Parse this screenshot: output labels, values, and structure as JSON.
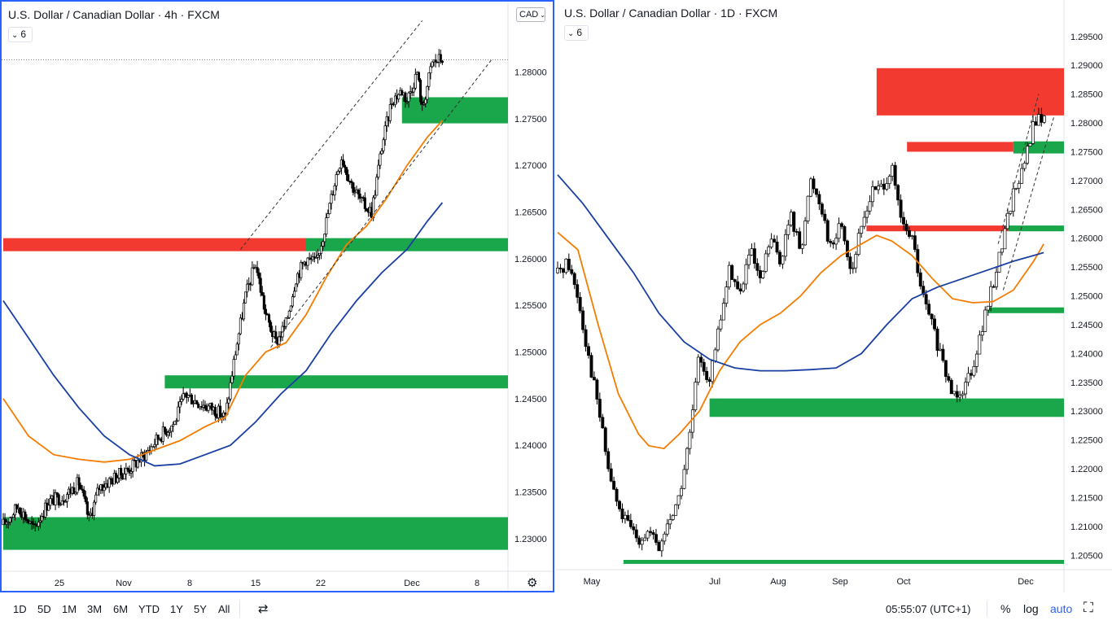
{
  "left_chart": {
    "title": "U.S. Dollar / Canadian Dollar · 4h · FXCM",
    "interval_value": "6",
    "currency_label": "CAD",
    "x_ticks": [
      "25",
      "Nov",
      "8",
      "15",
      "22",
      "Dec",
      "8"
    ],
    "y_ticks": [
      "1.28000",
      "1.27500",
      "1.27000",
      "1.26500",
      "1.26000",
      "1.25500",
      "1.25000",
      "1.24500",
      "1.24000",
      "1.23500",
      "1.23000"
    ]
  },
  "right_chart": {
    "title": "U.S. Dollar / Canadian Dollar · 1D · FXCM",
    "interval_value": "6",
    "x_ticks": [
      "May",
      "Jul",
      "Aug",
      "Sep",
      "Oct",
      "Dec"
    ],
    "y_ticks": [
      "1.29500",
      "1.29000",
      "1.28500",
      "1.28000",
      "1.27500",
      "1.27000",
      "1.26500",
      "1.26000",
      "1.25500",
      "1.25000",
      "1.24500",
      "1.24000",
      "1.23500",
      "1.23000",
      "1.22500",
      "1.22000",
      "1.21500",
      "1.21000",
      "1.20500"
    ]
  },
  "bottom_bar": {
    "ranges": [
      "1D",
      "5D",
      "1M",
      "3M",
      "6M",
      "YTD",
      "1Y",
      "5Y",
      "All"
    ],
    "time": "05:55:07 (UTC+1)",
    "percent": "%",
    "log": "log",
    "auto": "auto"
  },
  "colors": {
    "bull_zone": "#1aa64a",
    "bear_zone": "#f23a31",
    "ma_fast": "#f57c00",
    "ma_slow": "#1a3fa3",
    "frame": "#2962ff"
  },
  "icons": [
    "chevron-down-icon",
    "gear-icon",
    "compare-icon",
    "fullscreen-icon"
  ],
  "chart_data": [
    {
      "type": "candlestick",
      "title": "U.S. Dollar / Canadian Dollar · 4h · FXCM",
      "ylim": [
        1.2265,
        1.2858
      ],
      "y_scale": "linear",
      "series": [
        {
          "name": "",
          "kind": "candles",
          "close_path": [
            [
              0,
              1.2315
            ],
            [
              0.03,
              1.2335
            ],
            [
              0.06,
              1.231
            ],
            [
              0.09,
              1.234
            ],
            [
              0.12,
              1.2345
            ],
            [
              0.15,
              1.236
            ],
            [
              0.17,
              1.232
            ],
            [
              0.19,
              1.2355
            ],
            [
              0.22,
              1.2365
            ],
            [
              0.25,
              1.2375
            ],
            [
              0.28,
              1.239
            ],
            [
              0.31,
              1.241
            ],
            [
              0.34,
              1.2425
            ],
            [
              0.36,
              1.2455
            ],
            [
              0.39,
              1.2445
            ],
            [
              0.42,
              1.2438
            ],
            [
              0.44,
              1.243
            ],
            [
              0.46,
              1.25
            ],
            [
              0.48,
              1.256
            ],
            [
              0.5,
              1.2595
            ],
            [
              0.52,
              1.254
            ],
            [
              0.54,
              1.251
            ],
            [
              0.56,
              1.253
            ],
            [
              0.58,
              1.258
            ],
            [
              0.6,
              1.26
            ],
            [
              0.62,
              1.2595
            ],
            [
              0.64,
              1.264
            ],
            [
              0.66,
              1.269
            ],
            [
              0.67,
              1.271
            ],
            [
              0.69,
              1.268
            ],
            [
              0.71,
              1.266
            ],
            [
              0.73,
              1.265
            ],
            [
              0.75,
              1.272
            ],
            [
              0.77,
              1.277
            ],
            [
              0.79,
              1.278
            ],
            [
              0.8,
              1.277
            ],
            [
              0.82,
              1.28
            ],
            [
              0.83,
              1.276
            ],
            [
              0.85,
              1.281
            ],
            [
              0.87,
              1.2815
            ]
          ]
        },
        {
          "name": "",
          "kind": "line",
          "points": [
            [
              0.0,
              1.245
            ],
            [
              0.05,
              1.241
            ],
            [
              0.1,
              1.239
            ],
            [
              0.15,
              1.2385
            ],
            [
              0.2,
              1.2382
            ],
            [
              0.25,
              1.2385
            ],
            [
              0.3,
              1.2395
            ],
            [
              0.35,
              1.2405
            ],
            [
              0.4,
              1.242
            ],
            [
              0.44,
              1.243
            ],
            [
              0.48,
              1.2475
            ],
            [
              0.52,
              1.25
            ],
            [
              0.56,
              1.251
            ],
            [
              0.6,
              1.254
            ],
            [
              0.64,
              1.258
            ],
            [
              0.68,
              1.2615
            ],
            [
              0.72,
              1.2635
            ],
            [
              0.76,
              1.2665
            ],
            [
              0.8,
              1.27
            ],
            [
              0.84,
              1.273
            ],
            [
              0.87,
              1.2748
            ]
          ]
        },
        {
          "name": "",
          "kind": "line",
          "points": [
            [
              0.0,
              1.2555
            ],
            [
              0.05,
              1.2515
            ],
            [
              0.1,
              1.2475
            ],
            [
              0.15,
              1.244
            ],
            [
              0.2,
              1.241
            ],
            [
              0.25,
              1.239
            ],
            [
              0.3,
              1.2378
            ],
            [
              0.35,
              1.238
            ],
            [
              0.4,
              1.239
            ],
            [
              0.45,
              1.24
            ],
            [
              0.5,
              1.2425
            ],
            [
              0.55,
              1.2455
            ],
            [
              0.6,
              1.248
            ],
            [
              0.65,
              1.252
            ],
            [
              0.7,
              1.2555
            ],
            [
              0.75,
              1.2585
            ],
            [
              0.8,
              1.261
            ],
            [
              0.84,
              1.264
            ],
            [
              0.87,
              1.266
            ]
          ]
        }
      ],
      "zones": [
        {
          "kind": "bear",
          "from": 1.2608,
          "to": 1.2622,
          "x_start": 0.0,
          "x_end": 0.6
        },
        {
          "kind": "bull",
          "from": 1.2608,
          "to": 1.2622,
          "x_start": 0.6,
          "x_end": 1.0
        },
        {
          "kind": "bull",
          "from": 1.2461,
          "to": 1.2475,
          "x_start": 0.32,
          "x_end": 1.0
        },
        {
          "kind": "bull",
          "from": 1.2745,
          "to": 1.2773,
          "x_start": 0.79,
          "x_end": 1.0
        },
        {
          "kind": "bull",
          "from": 1.2288,
          "to": 1.2323,
          "x_start": 0.0,
          "x_end": 1.0
        }
      ],
      "trendlines": [
        [
          [
            0.47,
            1.261
          ],
          [
            0.83,
            1.2855
          ]
        ],
        [
          [
            0.53,
            1.2505
          ],
          [
            0.97,
            1.2815
          ]
        ]
      ],
      "last_price_line": 1.2813
    },
    {
      "type": "candlestick",
      "title": "U.S. Dollar / Canadian Dollar · 1D · FXCM",
      "ylim": [
        1.2025,
        1.2985
      ],
      "y_scale": "linear",
      "series": [
        {
          "name": "",
          "kind": "candles",
          "close_path": [
            [
              0,
              1.254
            ],
            [
              0.02,
              1.256
            ],
            [
              0.04,
              1.25
            ],
            [
              0.06,
              1.24
            ],
            [
              0.08,
              1.231
            ],
            [
              0.1,
              1.22
            ],
            [
              0.12,
              1.213
            ],
            [
              0.14,
              1.21
            ],
            [
              0.16,
              1.208
            ],
            [
              0.18,
              1.209
            ],
            [
              0.2,
              1.206
            ],
            [
              0.22,
              1.211
            ],
            [
              0.24,
              1.215
            ],
            [
              0.26,
              1.225
            ],
            [
              0.28,
              1.24
            ],
            [
              0.3,
              1.235
            ],
            [
              0.32,
              1.245
            ],
            [
              0.34,
              1.255
            ],
            [
              0.36,
              1.25
            ],
            [
              0.38,
              1.258
            ],
            [
              0.4,
              1.252
            ],
            [
              0.42,
              1.26
            ],
            [
              0.44,
              1.256
            ],
            [
              0.46,
              1.264
            ],
            [
              0.48,
              1.258
            ],
            [
              0.5,
              1.27
            ],
            [
              0.52,
              1.266
            ],
            [
              0.54,
              1.258
            ],
            [
              0.56,
              1.263
            ],
            [
              0.58,
              1.254
            ],
            [
              0.6,
              1.262
            ],
            [
              0.62,
              1.268
            ],
            [
              0.64,
              1.269
            ],
            [
              0.66,
              1.272
            ],
            [
              0.68,
              1.262
            ],
            [
              0.7,
              1.26
            ],
            [
              0.72,
              1.25
            ],
            [
              0.74,
              1.245
            ],
            [
              0.76,
              1.238
            ],
            [
              0.78,
              1.233
            ],
            [
              0.8,
              1.234
            ],
            [
              0.82,
              1.238
            ],
            [
              0.84,
              1.245
            ],
            [
              0.86,
              1.252
            ],
            [
              0.88,
              1.26
            ],
            [
              0.9,
              1.268
            ],
            [
              0.92,
              1.272
            ],
            [
              0.94,
              1.28
            ],
            [
              0.96,
              1.281
            ]
          ]
        },
        {
          "name": "",
          "kind": "line",
          "points": [
            [
              0.0,
              1.261
            ],
            [
              0.04,
              1.258
            ],
            [
              0.08,
              1.245
            ],
            [
              0.12,
              1.233
            ],
            [
              0.16,
              1.226
            ],
            [
              0.18,
              1.224
            ],
            [
              0.21,
              1.2235
            ],
            [
              0.24,
              1.226
            ],
            [
              0.28,
              1.23
            ],
            [
              0.32,
              1.237
            ],
            [
              0.36,
              1.242
            ],
            [
              0.4,
              1.245
            ],
            [
              0.44,
              1.247
            ],
            [
              0.48,
              1.25
            ],
            [
              0.52,
              1.254
            ],
            [
              0.56,
              1.257
            ],
            [
              0.6,
              1.259
            ],
            [
              0.63,
              1.2605
            ],
            [
              0.66,
              1.2595
            ],
            [
              0.7,
              1.257
            ],
            [
              0.74,
              1.253
            ],
            [
              0.78,
              1.2495
            ],
            [
              0.82,
              1.2488
            ],
            [
              0.86,
              1.249
            ],
            [
              0.9,
              1.251
            ],
            [
              0.94,
              1.256
            ],
            [
              0.96,
              1.259
            ]
          ]
        },
        {
          "name": "",
          "kind": "line",
          "points": [
            [
              0.0,
              1.271
            ],
            [
              0.05,
              1.266
            ],
            [
              0.1,
              1.26
            ],
            [
              0.15,
              1.254
            ],
            [
              0.2,
              1.247
            ],
            [
              0.25,
              1.242
            ],
            [
              0.3,
              1.239
            ],
            [
              0.35,
              1.2375
            ],
            [
              0.4,
              1.237
            ],
            [
              0.45,
              1.237
            ],
            [
              0.5,
              1.2372
            ],
            [
              0.55,
              1.2375
            ],
            [
              0.6,
              1.24
            ],
            [
              0.65,
              1.245
            ],
            [
              0.7,
              1.2495
            ],
            [
              0.75,
              1.2515
            ],
            [
              0.8,
              1.253
            ],
            [
              0.85,
              1.2545
            ],
            [
              0.9,
              1.256
            ],
            [
              0.94,
              1.257
            ],
            [
              0.96,
              1.2575
            ]
          ]
        }
      ],
      "zones": [
        {
          "kind": "bear",
          "from": 1.2813,
          "to": 1.2895,
          "x_start": 0.63,
          "x_end": 1.0
        },
        {
          "kind": "bear",
          "from": 1.275,
          "to": 1.2767,
          "x_start": 0.69,
          "x_end": 0.9
        },
        {
          "kind": "bull",
          "from": 1.2747,
          "to": 1.2768,
          "x_start": 0.9,
          "x_end": 1.0
        },
        {
          "kind": "bear",
          "from": 1.2612,
          "to": 1.2622,
          "x_start": 0.61,
          "x_end": 0.89
        },
        {
          "kind": "bull",
          "from": 1.2612,
          "to": 1.2622,
          "x_start": 0.89,
          "x_end": 1.0
        },
        {
          "kind": "bull",
          "from": 1.247,
          "to": 1.248,
          "x_start": 0.85,
          "x_end": 1.0
        },
        {
          "kind": "bull",
          "from": 1.229,
          "to": 1.2322,
          "x_start": 0.3,
          "x_end": 1.0
        },
        {
          "kind": "bull",
          "from": 1.2035,
          "to": 1.2042,
          "x_start": 0.13,
          "x_end": 1.0
        }
      ],
      "trendlines": [
        [
          [
            0.87,
            1.259
          ],
          [
            0.95,
            1.285
          ]
        ],
        [
          [
            0.88,
            1.251
          ],
          [
            0.98,
            1.281
          ]
        ]
      ]
    }
  ]
}
